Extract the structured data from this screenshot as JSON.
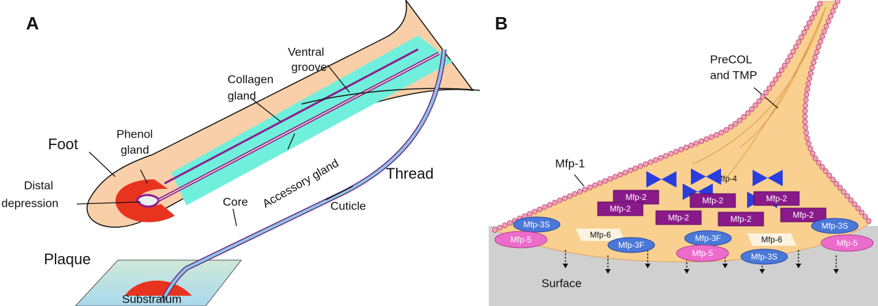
{
  "panel_a": {
    "label": "A",
    "ventral_groove": [
      "Ventral",
      "groove"
    ],
    "collagen_gland": [
      "Collagen",
      "gland"
    ],
    "phenol_gland": [
      "Phenol",
      "gland"
    ],
    "foot": "Foot",
    "distal_depression": [
      "Distal",
      "depression"
    ],
    "accessory_gland": "Accessory gland",
    "thread": "Thread",
    "core": "Core",
    "cuticle": "Cuticle",
    "plaque": "Plaque",
    "substratum": "Substratum"
  },
  "panel_b": {
    "label": "B",
    "precol": [
      "PreCOL",
      "and TMP"
    ],
    "mfp1": "Mfp-1",
    "mfp4": "Mfp-4",
    "surface": "Surface",
    "proteins": [
      "Mfp-2",
      "Mfp-2",
      "Mfp-2",
      "Mfp-2",
      "Mfp-2",
      "Mfp-2",
      "Mfp-2",
      "Mfp-3S",
      "Mfp-3S",
      "Mfp-3S",
      "Mfp-6",
      "Mfp-6",
      "Mfp-3F",
      "Mfp-3F",
      "Mfp-5",
      "Mfp-5",
      "Mfp-5"
    ]
  }
}
